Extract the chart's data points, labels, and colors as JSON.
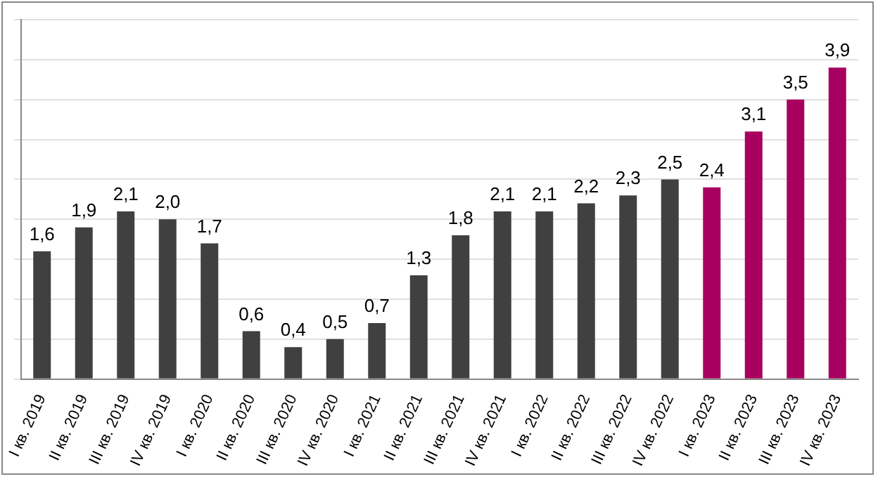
{
  "chart_data": {
    "type": "bar",
    "categories": [
      "I кв. 2019",
      "II кв. 2019",
      "III кв. 2019",
      "IV кв. 2019",
      "I кв. 2020",
      "II кв. 2020",
      "III кв. 2020",
      "IV кв. 2020",
      "I кв. 2021",
      "II кв. 2021",
      "III кв. 2021",
      "IV кв. 2021",
      "I кв. 2022",
      "II кв. 2022",
      "III кв. 2022",
      "IV кв. 2022",
      "I кв. 2023",
      "II кв. 2023",
      "III кв. 2023",
      "IV кв. 2023"
    ],
    "values": [
      1.6,
      1.9,
      2.1,
      2.0,
      1.7,
      0.6,
      0.4,
      0.5,
      0.7,
      1.3,
      1.8,
      2.1,
      2.1,
      2.2,
      2.3,
      2.5,
      2.4,
      3.1,
      3.5,
      3.9
    ],
    "value_labels": [
      "1,6",
      "1,9",
      "2,1",
      "2,0",
      "1,7",
      "0,6",
      "0,4",
      "0,5",
      "0,7",
      "1,3",
      "1,8",
      "2,1",
      "2,1",
      "2,2",
      "2,3",
      "2,5",
      "2,4",
      "3,1",
      "3,5",
      "3,9"
    ],
    "colors": [
      "#404040",
      "#404040",
      "#404040",
      "#404040",
      "#404040",
      "#404040",
      "#404040",
      "#404040",
      "#404040",
      "#404040",
      "#404040",
      "#404040",
      "#404040",
      "#404040",
      "#404040",
      "#404040",
      "#a8005f",
      "#a8005f",
      "#a8005f",
      "#a8005f"
    ],
    "ylim": [
      0,
      4.5
    ],
    "yticks": [
      {
        "value": 0,
        "label": null
      },
      {
        "value": 0.5,
        "label": null
      },
      {
        "value": 1,
        "label": null
      },
      {
        "value": 1.5,
        "label": null
      },
      {
        "value": 2,
        "label": null
      },
      {
        "value": 2.5,
        "label": null
      },
      {
        "value": 3,
        "label": null
      },
      {
        "value": 3.5,
        "label": null
      },
      {
        "value": 4,
        "label": null
      },
      {
        "value": 4.5,
        "label": null
      }
    ],
    "grid": "y",
    "tick_labels": "x"
  }
}
